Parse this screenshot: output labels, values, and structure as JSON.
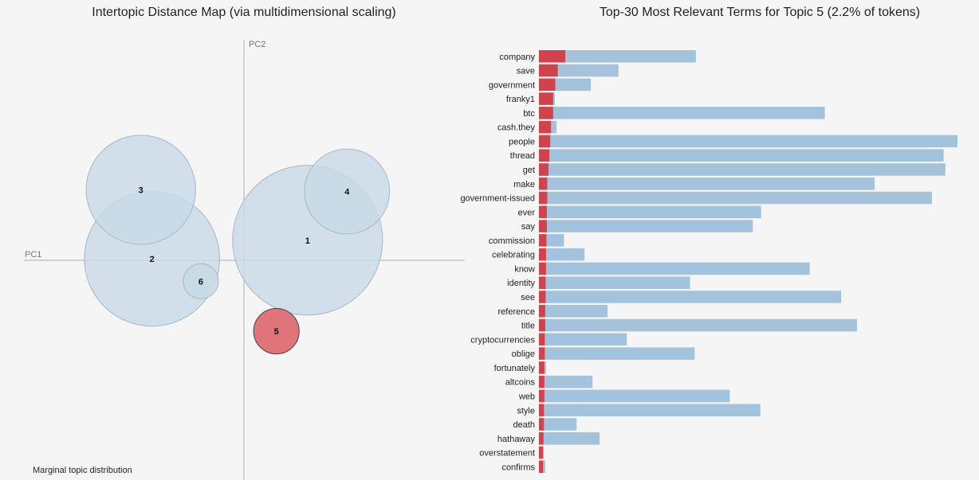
{
  "left_panel": {
    "title": "Intertopic Distance Map (via multidimensional scaling)",
    "x_axis_label": "PC1",
    "y_axis_label": "PC2",
    "footnote": "Marginal topic distribution"
  },
  "right_panel": {
    "title": "Top-30 Most Relevant Terms for Topic 5 (2.2% of tokens)"
  },
  "colors": {
    "topic_bubble": "#c9dbe8",
    "topic_bubble_stroke": "#a8b8c4",
    "selected_bubble": "#e07478",
    "selected_bubble_stroke": "#444444",
    "overall_freq_bar": "#a3c3dc",
    "topic_freq_bar": "#d0434d",
    "axis_line": "#b0b0b0"
  },
  "chart_data": [
    {
      "type": "scatter",
      "title": "Intertopic Distance Map (via multidimensional scaling)",
      "xlabel": "PC1",
      "ylabel": "PC2",
      "selected_topic": "5",
      "topics": [
        {
          "label": "1",
          "pc1": 0.155,
          "pc2": 0.049,
          "share": 23.9
        },
        {
          "label": "2",
          "pc1": -0.224,
          "pc2": 0.004,
          "share": 19.4
        },
        {
          "label": "3",
          "pc1": -0.251,
          "pc2": 0.172,
          "share": 12.7
        },
        {
          "label": "4",
          "pc1": 0.251,
          "pc2": 0.168,
          "share": 7.7
        },
        {
          "label": "5",
          "pc1": 0.079,
          "pc2": -0.173,
          "share": 2.2
        },
        {
          "label": "6",
          "pc1": -0.105,
          "pc2": -0.051,
          "share": 1.3
        }
      ],
      "xlim": [
        -0.3,
        0.3
      ],
      "ylim": [
        -0.27,
        0.27
      ],
      "grid": false
    },
    {
      "type": "bar",
      "orientation": "horizontal",
      "title": "Top-30 Most Relevant Terms for Topic 5 (2.2% of tokens)",
      "xlim": [
        0,
        100
      ],
      "series_keys": [
        "overall",
        "topic"
      ],
      "terms": [
        {
          "term": "company",
          "overall": 37.5,
          "topic": 6.3
        },
        {
          "term": "save",
          "overall": 19.0,
          "topic": 4.5
        },
        {
          "term": "government",
          "overall": 12.4,
          "topic": 3.9
        },
        {
          "term": "franky1",
          "overall": 3.8,
          "topic": 3.4
        },
        {
          "term": "btc",
          "overall": 68.3,
          "topic": 3.4
        },
        {
          "term": "cash.they",
          "overall": 4.2,
          "topic": 2.9
        },
        {
          "term": "people",
          "overall": 100.0,
          "topic": 2.7
        },
        {
          "term": "thread",
          "overall": 96.7,
          "topic": 2.5
        },
        {
          "term": "get",
          "overall": 97.1,
          "topic": 2.3
        },
        {
          "term": "make",
          "overall": 80.2,
          "topic": 2.0
        },
        {
          "term": "government-issued",
          "overall": 93.9,
          "topic": 2.0
        },
        {
          "term": "ever",
          "overall": 53.1,
          "topic": 1.9
        },
        {
          "term": "say",
          "overall": 51.1,
          "topic": 1.9
        },
        {
          "term": "commission",
          "overall": 6.0,
          "topic": 1.8
        },
        {
          "term": "celebrating",
          "overall": 10.9,
          "topic": 1.7
        },
        {
          "term": "know",
          "overall": 64.7,
          "topic": 1.7
        },
        {
          "term": "identity",
          "overall": 36.1,
          "topic": 1.6
        },
        {
          "term": "see",
          "overall": 72.2,
          "topic": 1.6
        },
        {
          "term": "reference",
          "overall": 16.4,
          "topic": 1.5
        },
        {
          "term": "title",
          "overall": 76.0,
          "topic": 1.5
        },
        {
          "term": "cryptocurrencies",
          "overall": 21.0,
          "topic": 1.4
        },
        {
          "term": "oblige",
          "overall": 37.2,
          "topic": 1.4
        },
        {
          "term": "fortunately",
          "overall": 1.7,
          "topic": 1.3
        },
        {
          "term": "altcoins",
          "overall": 12.8,
          "topic": 1.3
        },
        {
          "term": "web",
          "overall": 45.6,
          "topic": 1.3
        },
        {
          "term": "style",
          "overall": 52.9,
          "topic": 1.2
        },
        {
          "term": "death",
          "overall": 9.0,
          "topic": 1.2
        },
        {
          "term": "hathaway",
          "overall": 14.5,
          "topic": 1.1
        },
        {
          "term": "overstatement",
          "overall": 1.1,
          "topic": 1.0
        },
        {
          "term": "confirms",
          "overall": 1.5,
          "topic": 1.0
        }
      ]
    }
  ]
}
